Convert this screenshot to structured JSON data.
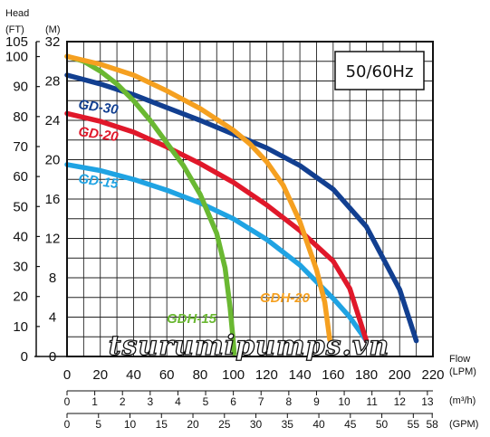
{
  "chart_data": {
    "type": "line",
    "y_axis_title": "Head",
    "y_left_unit": "(FT)",
    "y_right_unit": "(M)",
    "x_axis_title": "Flow",
    "x_unit_lpm": "(LPM)",
    "x_unit_m3h": "(m³/h)",
    "x_unit_gpm": "(GPM)",
    "frequency_badge": "50/60Hz",
    "watermark": "tsurumipumps.vn",
    "xlim": [
      0,
      220
    ],
    "ylim_m": [
      0,
      32
    ],
    "ylim_ft": [
      0,
      105
    ],
    "x_ticks_lpm": [
      "0",
      "20",
      "40",
      "60",
      "80",
      "100",
      "120",
      "140",
      "160",
      "180",
      "200",
      "220"
    ],
    "y_ticks_m": [
      "0",
      "4",
      "8",
      "12",
      "16",
      "20",
      "24",
      "28",
      "32"
    ],
    "y_ticks_ft": [
      "0",
      "10",
      "20",
      "30",
      "40",
      "50",
      "60",
      "70",
      "80",
      "90",
      "100",
      "105"
    ],
    "m3h_ticks": [
      "0",
      "1",
      "2",
      "3",
      "4",
      "5",
      "6",
      "7",
      "8",
      "9",
      "10",
      "11",
      "12",
      "13"
    ],
    "gpm_ticks": [
      "0",
      "5",
      "10",
      "15",
      "20",
      "25",
      "30",
      "35",
      "40",
      "45",
      "50",
      "55",
      "58"
    ],
    "grid": true,
    "series": [
      {
        "name": "GD-15",
        "color": "#1fa3e3",
        "x": [
          0,
          20,
          40,
          60,
          80,
          100,
          120,
          140,
          160,
          170,
          180
        ],
        "y": [
          19.5,
          18.9,
          18.0,
          16.9,
          15.6,
          14.0,
          11.9,
          9.3,
          5.9,
          4.0,
          1.6
        ]
      },
      {
        "name": "GD-20",
        "color": "#e0182a",
        "x": [
          0,
          20,
          40,
          60,
          80,
          100,
          120,
          140,
          160,
          170,
          180
        ],
        "y": [
          24.7,
          23.9,
          22.8,
          21.3,
          19.6,
          17.7,
          15.4,
          12.8,
          9.7,
          6.9,
          1.6
        ]
      },
      {
        "name": "GD-30",
        "color": "#123f90",
        "x": [
          0,
          20,
          40,
          60,
          80,
          100,
          120,
          140,
          160,
          180,
          200,
          210
        ],
        "y": [
          28.6,
          27.7,
          26.6,
          25.3,
          24.0,
          22.6,
          21.2,
          19.4,
          17.0,
          13.2,
          6.8,
          1.6
        ]
      },
      {
        "name": "GDH-15",
        "color": "#6ab832",
        "x": [
          0,
          10,
          20,
          30,
          40,
          50,
          60,
          70,
          80,
          90,
          95,
          98,
          100,
          100.5
        ],
        "y": [
          30.5,
          30.0,
          29.0,
          27.7,
          26.0,
          24.0,
          21.7,
          19.4,
          16.5,
          12.5,
          9.0,
          5.0,
          1.5,
          0.3
        ]
      },
      {
        "name": "GDH-20",
        "color": "#f5a020",
        "x": [
          0,
          20,
          40,
          60,
          80,
          100,
          110,
          120,
          130,
          140,
          150,
          155,
          158
        ],
        "y": [
          30.5,
          29.7,
          28.6,
          27.0,
          25.2,
          23.0,
          21.6,
          19.8,
          17.4,
          13.7,
          8.8,
          5.5,
          1.7
        ]
      }
    ],
    "series_labels": {
      "GD-15": "GD-15",
      "GD-20": "GD-20",
      "GD-30": "GD-30",
      "GDH-15": "GDH-15",
      "GDH-20": "GDH-20"
    }
  }
}
